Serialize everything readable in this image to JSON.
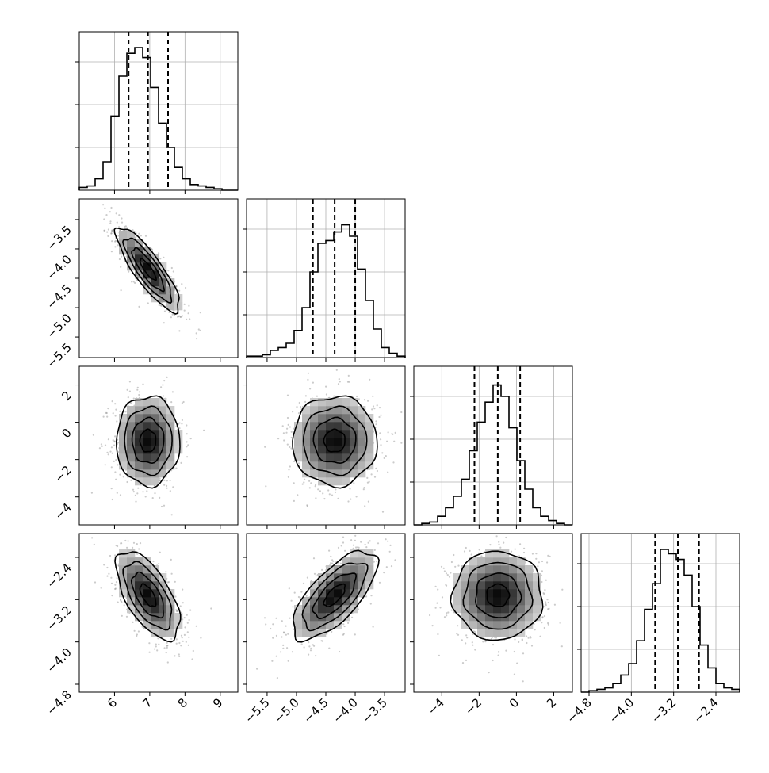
{
  "chart_data": {
    "type": "corner",
    "title": "",
    "parameters": [
      {
        "index": 0,
        "range": [
          5.0,
          9.5
        ],
        "ticks": [
          "6",
          "7",
          "8",
          "9"
        ],
        "tick_values": [
          6,
          7,
          8,
          9
        ],
        "mean": 6.95,
        "sigma": 0.45,
        "quantiles": [
          6.4,
          6.95,
          7.52
        ]
      },
      {
        "index": 1,
        "range": [
          -5.85,
          -3.15
        ],
        "ticks": [
          "−3.5",
          "−4.0",
          "−4.5",
          "−5.0",
          "−5.5"
        ],
        "tick_values": [
          -3.5,
          -4.0,
          -4.5,
          -5.0,
          -5.5
        ],
        "mean": -4.35,
        "sigma": 0.36,
        "quantiles": [
          -4.72,
          -4.35,
          -4.0
        ]
      },
      {
        "index": 2,
        "range": [
          -5.5,
          3.0
        ],
        "ticks": [
          "2",
          "0",
          "−2",
          "−4"
        ],
        "tick_values": [
          2,
          0,
          -2,
          -4
        ],
        "mean": -1.0,
        "sigma": 1.2,
        "quantiles": [
          -2.25,
          -1.0,
          0.2
        ]
      },
      {
        "index": 3,
        "range": [
          -4.95,
          -1.95
        ],
        "ticks": [
          "−2.4",
          "−3.2",
          "−4.0",
          "−4.8"
        ],
        "tick_values": [
          -2.4,
          -3.2,
          -4.0,
          -4.8
        ],
        "mean": -3.12,
        "sigma": 0.42,
        "quantiles": [
          -3.55,
          -3.12,
          -2.72
        ]
      }
    ],
    "correlations": {
      "0-1": -0.85,
      "0-2": 0.0,
      "0-3": -0.62,
      "1-2": 0.0,
      "1-3": 0.7,
      "2-3": 0.0
    },
    "histograms": [
      [
        0.02,
        0.03,
        0.08,
        0.2,
        0.52,
        0.8,
        0.96,
        1.0,
        0.93,
        0.72,
        0.47,
        0.3,
        0.16,
        0.08,
        0.04,
        0.03,
        0.02,
        0.01,
        0.0,
        0.0
      ],
      [
        0.01,
        0.01,
        0.02,
        0.05,
        0.07,
        0.1,
        0.19,
        0.35,
        0.6,
        0.8,
        0.82,
        0.88,
        0.93,
        0.85,
        0.62,
        0.4,
        0.2,
        0.07,
        0.03,
        0.01
      ],
      [
        0.0,
        0.01,
        0.02,
        0.06,
        0.12,
        0.2,
        0.32,
        0.52,
        0.72,
        0.86,
        0.98,
        0.9,
        0.68,
        0.45,
        0.25,
        0.12,
        0.06,
        0.03,
        0.01,
        0.0
      ],
      [
        0.0,
        0.01,
        0.02,
        0.03,
        0.06,
        0.12,
        0.2,
        0.36,
        0.58,
        0.76,
        1.0,
        0.97,
        0.93,
        0.82,
        0.6,
        0.33,
        0.17,
        0.06,
        0.03,
        0.02
      ]
    ],
    "density_grid_bins": 20,
    "contour_levels_sigma": [
      0.5,
      1.0,
      1.5,
      2.0
    ],
    "grid": true,
    "legend": "none"
  },
  "colors": {
    "ink": "#000000",
    "grid": "#b0b0b0",
    "scatter": "#8c8c8c"
  }
}
